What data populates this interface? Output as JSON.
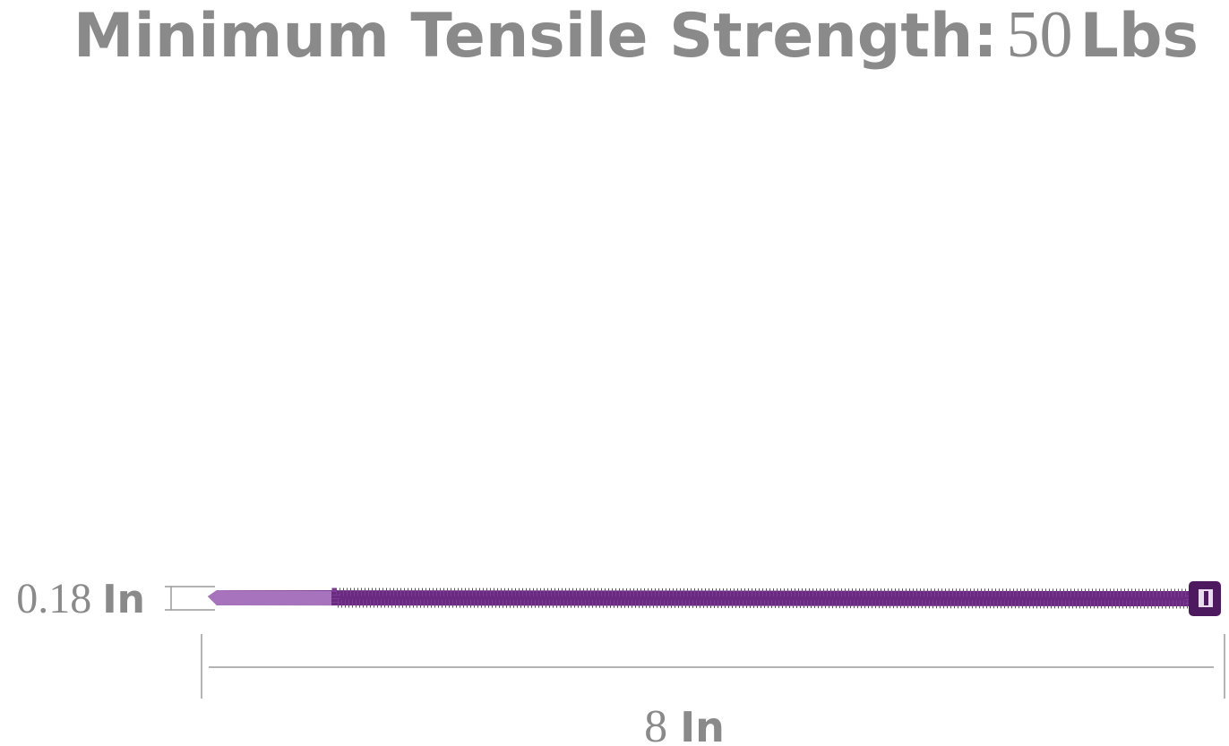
{
  "header": {
    "label": "Minimum Tensile Strength:",
    "value": 50,
    "unit": "Lbs"
  },
  "width": {
    "value": 0.18,
    "unit": "In"
  },
  "length": {
    "value": 8,
    "unit": "In"
  }
}
